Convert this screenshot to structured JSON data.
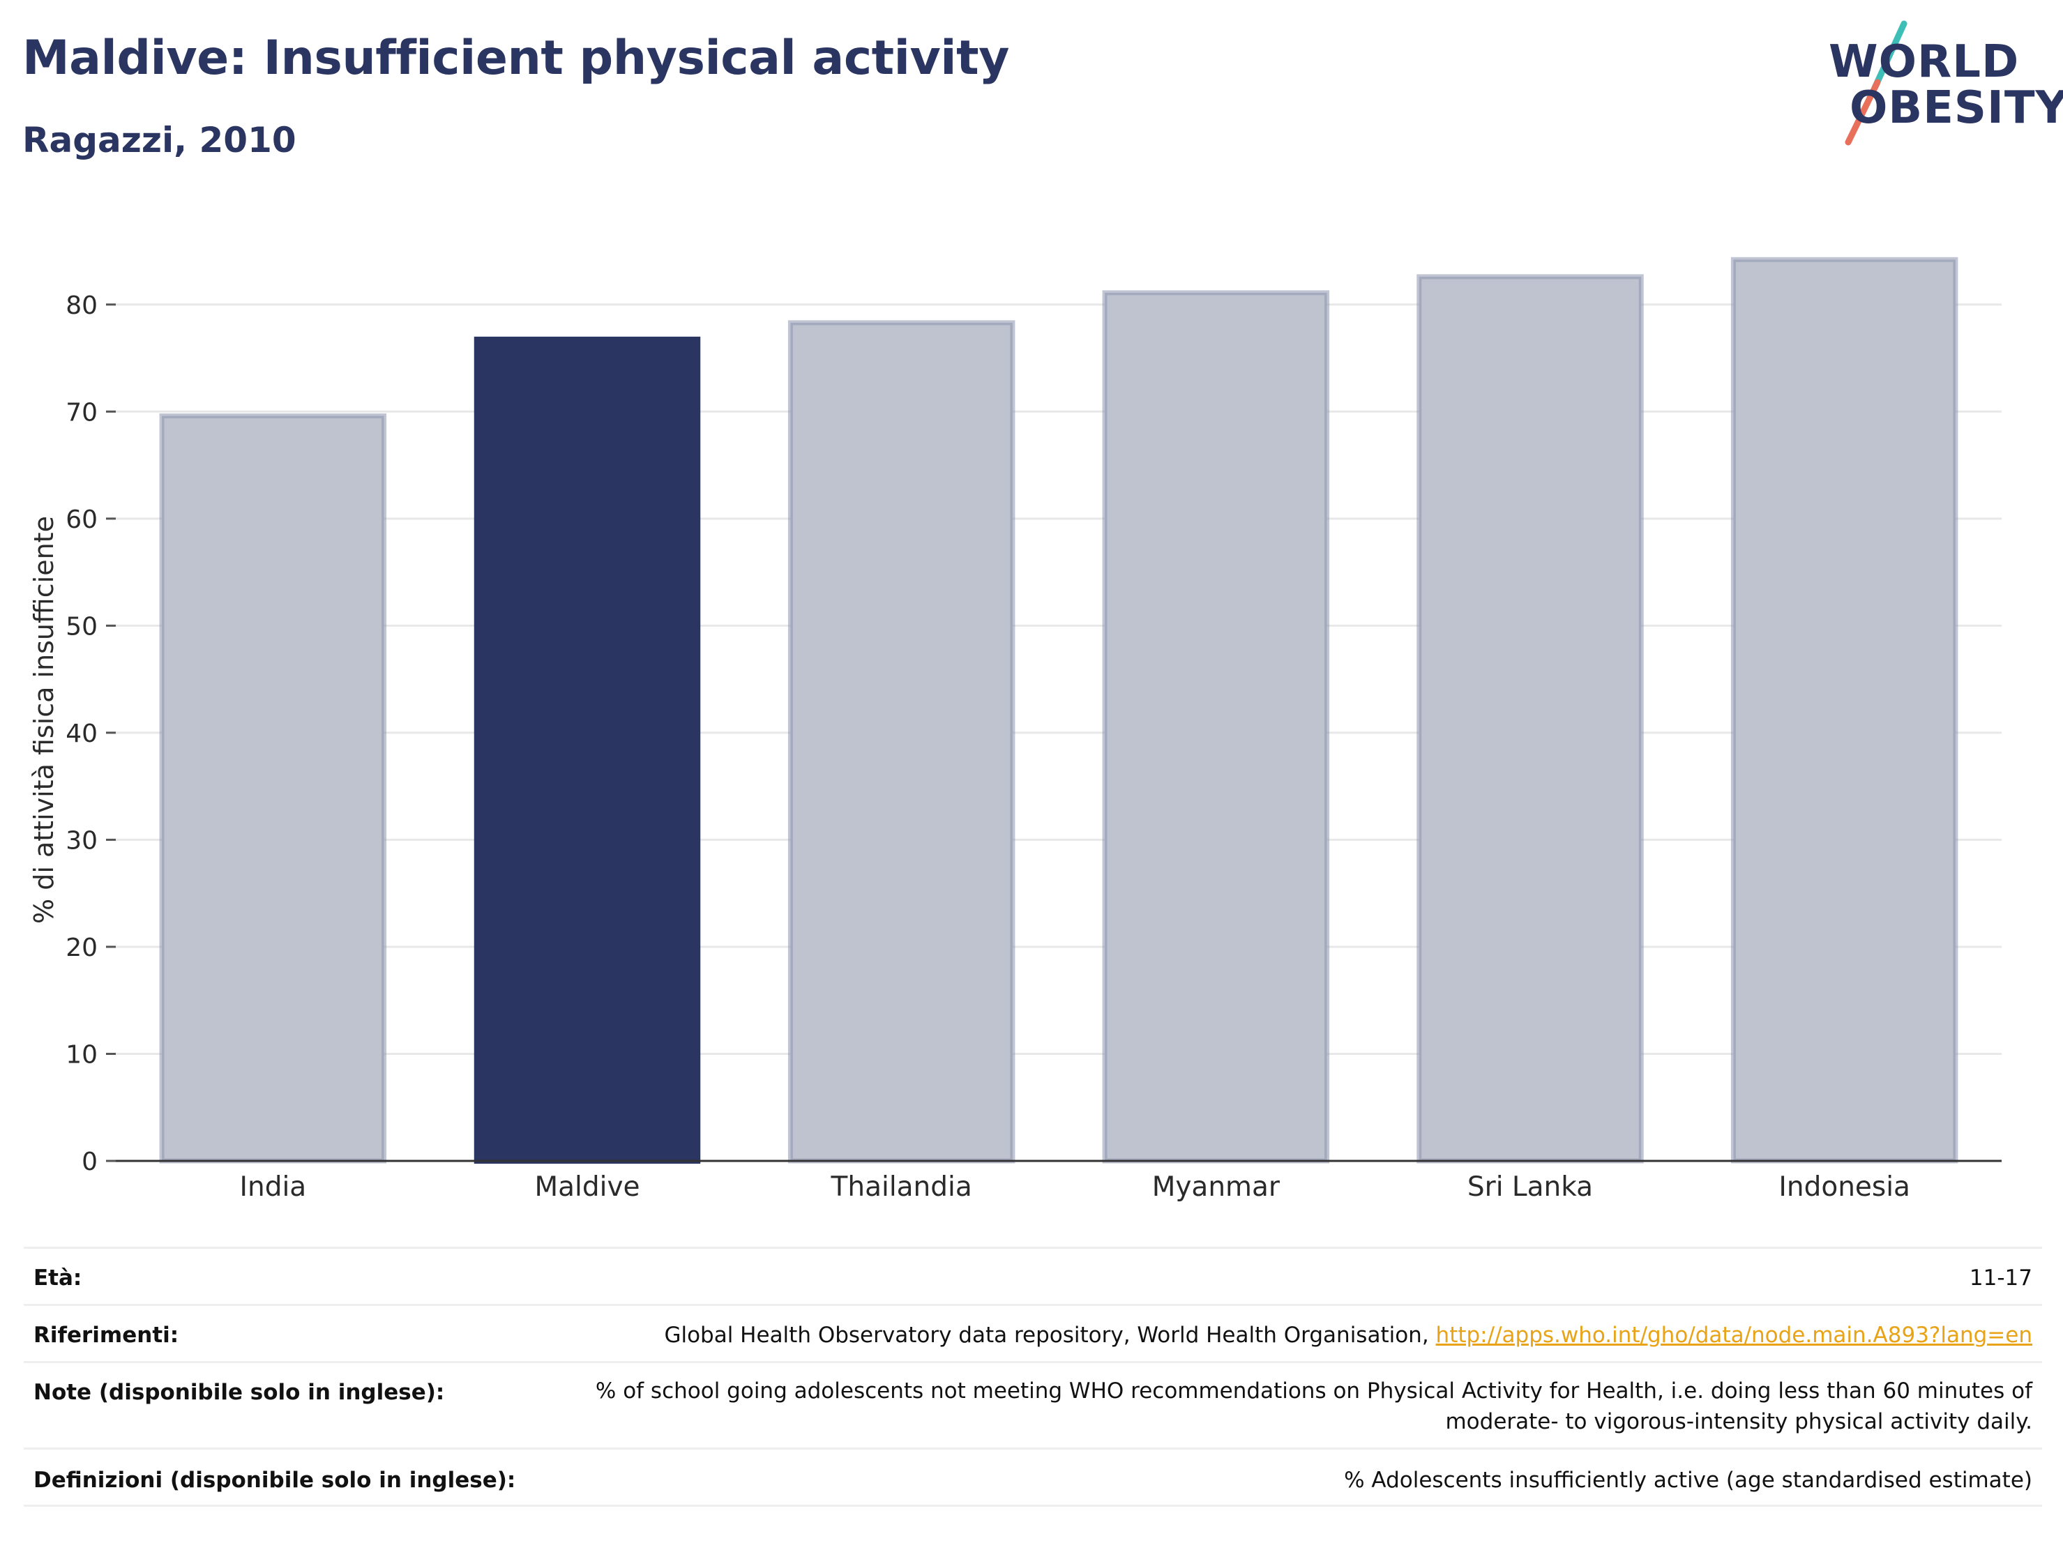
{
  "header": {
    "title": "Maldive: Insufficient physical activity",
    "subtitle": "Ragazzi, 2010"
  },
  "logo": {
    "line1": "WORLD",
    "line2": "OBESITY",
    "colors": {
      "text": "#2b3561",
      "slash_teal": "#3dbfb8",
      "slash_red": "#e8705a"
    }
  },
  "chart_data": {
    "type": "bar",
    "title": "",
    "xlabel": "",
    "ylabel": "% di attività fisica insufficiente",
    "categories": [
      "India",
      "Maldive",
      "Thailandia",
      "Myanmar",
      "Sri Lanka",
      "Indonesia"
    ],
    "values": [
      69.6,
      77.0,
      78.3,
      81.1,
      82.6,
      84.2
    ],
    "highlight": "Maldive",
    "ylim": [
      0,
      85
    ],
    "yticks": [
      0,
      10,
      20,
      30,
      40,
      50,
      60,
      70,
      80
    ],
    "grid": true,
    "colors": {
      "highlight": "#2b3561",
      "other_fill": "#bfc3cf",
      "other_stroke": "#8e96ae"
    }
  },
  "meta": {
    "rows": [
      {
        "key": "Età:",
        "value": "11-17"
      },
      {
        "key": "Riferimenti:",
        "value": "Global Health Observatory data repository, World Health Organisation, ",
        "link": "http://apps.who.int/gho/data/node.main.A893?lang=en"
      },
      {
        "key": "Note (disponibile solo in inglese):",
        "value_lines": [
          "% of school going adolescents not meeting WHO recommendations on Physical Activity for Health, i.e. doing less than 60 minutes of",
          "moderate- to vigorous-intensity physical activity daily."
        ]
      },
      {
        "key": "Definizioni (disponibile solo in inglese):",
        "value": "% Adolescents insufficiently active (age standardised estimate)"
      }
    ]
  }
}
